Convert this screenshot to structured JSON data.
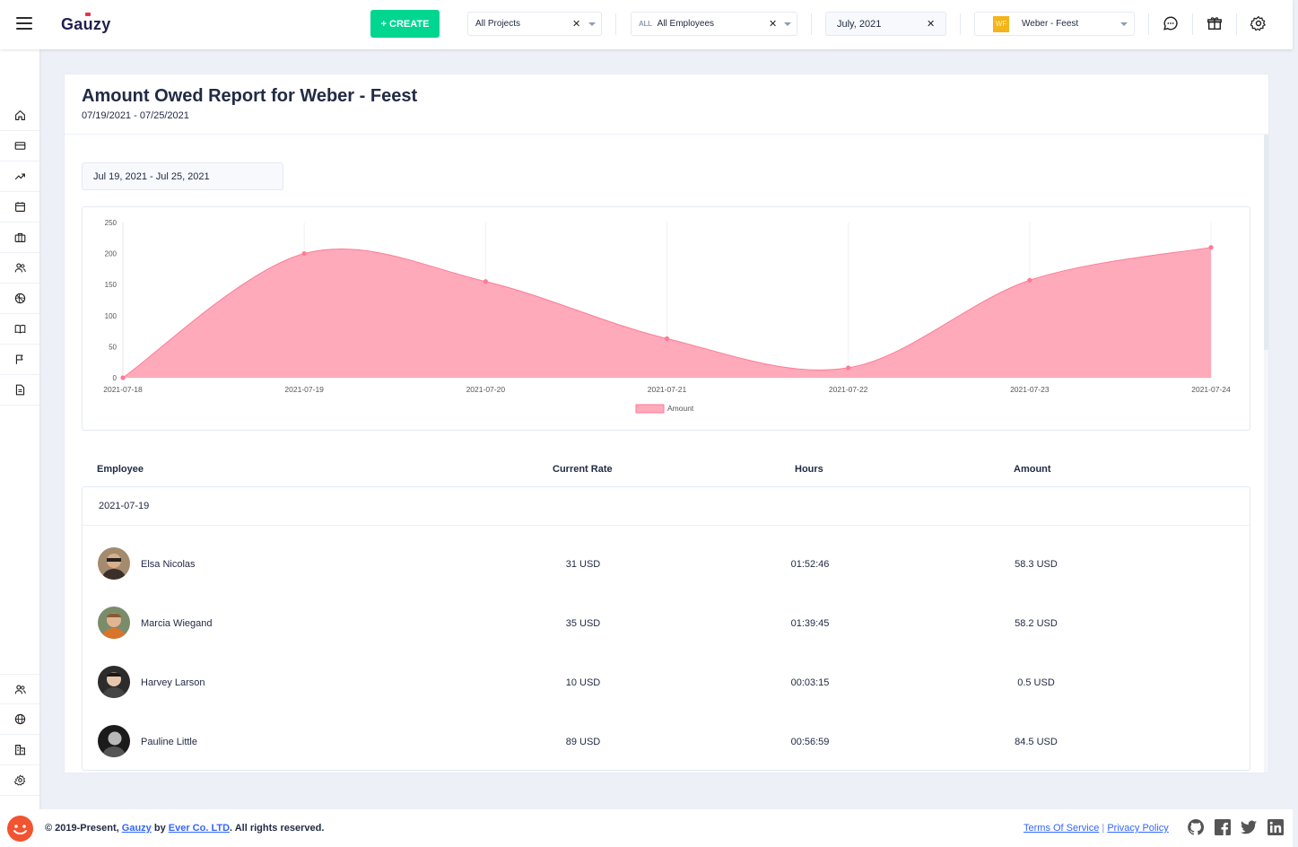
{
  "header": {
    "logo": "Gauzy",
    "create_label": "+ CREATE",
    "projects_select": "All Projects",
    "employees_all_tag": "ALL",
    "employees_select": "All Employees",
    "date_select": "July, 2021",
    "org_badge": "WF",
    "org_select": "Weber - Feest"
  },
  "sidebar": {
    "top_icons": [
      "home-icon",
      "card-icon",
      "trending-icon",
      "calendar-icon",
      "briefcase-icon",
      "people-icon",
      "basketball-icon",
      "book-icon",
      "flag-icon",
      "file-icon"
    ],
    "bottom_icons": [
      "people-icon",
      "globe-icon",
      "building-icon",
      "gear-icon"
    ]
  },
  "report": {
    "title": "Amount Owed Report for Weber - Feest",
    "period": "07/19/2021 - 07/25/2021",
    "range_value": "Jul 19, 2021 - Jul 25, 2021"
  },
  "chart_data": {
    "type": "area",
    "x": [
      "2021-07-18",
      "2021-07-19",
      "2021-07-20",
      "2021-07-21",
      "2021-07-22",
      "2021-07-23",
      "2021-07-24"
    ],
    "series": [
      {
        "name": "Amount",
        "values": [
          0,
          200,
          155,
          63,
          16,
          157,
          210
        ]
      }
    ],
    "yticks": [
      0,
      50,
      100,
      150,
      200,
      250
    ],
    "ylim": [
      0,
      250
    ],
    "legend": "bottom",
    "fill_color": "#ffaabb",
    "line_color": "#ff7b95"
  },
  "table": {
    "headers": {
      "employee": "Employee",
      "rate": "Current Rate",
      "hours": "Hours",
      "amount": "Amount"
    },
    "group_date": "2021-07-19",
    "rows": [
      {
        "name": "Elsa Nicolas",
        "rate": "31 USD",
        "hours": "01:52:46",
        "amount": "58.3 USD"
      },
      {
        "name": "Marcia Wiegand",
        "rate": "35 USD",
        "hours": "01:39:45",
        "amount": "58.2 USD"
      },
      {
        "name": "Harvey Larson",
        "rate": "10 USD",
        "hours": "00:03:15",
        "amount": "0.5 USD"
      },
      {
        "name": "Pauline Little",
        "rate": "89 USD",
        "hours": "00:56:59",
        "amount": "84.5 USD"
      }
    ]
  },
  "footer": {
    "copyright_prefix": "© 2019-Present,",
    "gauzy_link": "Gauzy",
    "by": "by",
    "ever_link": "Ever Co. LTD",
    "suffix": ". All rights reserved.",
    "terms": "Terms Of Service",
    "separator": "|",
    "privacy": "Privacy Policy"
  }
}
